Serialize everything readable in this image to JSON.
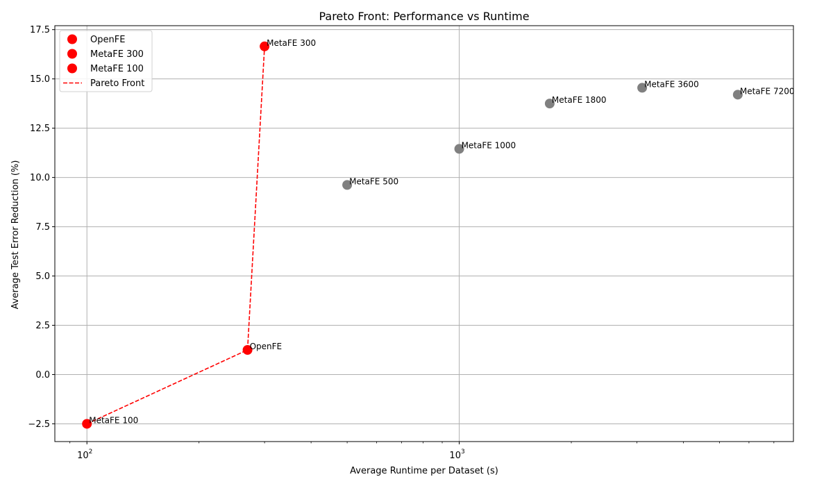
{
  "chart_data": {
    "type": "scatter",
    "title": "Pareto Front: Performance vs Runtime",
    "xlabel": "Average Runtime per Dataset (s)",
    "ylabel": "Average Test Error Reduction (%)",
    "xscale": "log",
    "xlim": [
      82,
      7900
    ],
    "ylim": [
      -3.4,
      17.7
    ],
    "grid": true,
    "legend_position": "top-left",
    "x_ticks": [
      {
        "value": 100,
        "base": "10",
        "exp": "2"
      },
      {
        "value": 1000,
        "base": "10",
        "exp": "3"
      }
    ],
    "y_ticks": [
      {
        "value": -2.5,
        "label": "−2.5"
      },
      {
        "value": 0,
        "label": "0.0"
      },
      {
        "value": 2.5,
        "label": "2.5"
      },
      {
        "value": 5,
        "label": "5.0"
      },
      {
        "value": 7.5,
        "label": "7.5"
      },
      {
        "value": 10,
        "label": "10.0"
      },
      {
        "value": 12.5,
        "label": "12.5"
      },
      {
        "value": 15,
        "label": "15.0"
      },
      {
        "value": 17.5,
        "label": "17.5"
      }
    ],
    "points": [
      {
        "name": "OpenFE",
        "x": 270,
        "y": 1.25,
        "pareto": true
      },
      {
        "name": "MetaFE 300",
        "x": 300,
        "y": 16.65,
        "pareto": true
      },
      {
        "name": "MetaFE 100",
        "x": 100,
        "y": -2.5,
        "pareto": true
      },
      {
        "name": "MetaFE 500",
        "x": 500,
        "y": 9.62,
        "pareto": false
      },
      {
        "name": "MetaFE 1000",
        "x": 1000,
        "y": 11.45,
        "pareto": false
      },
      {
        "name": "MetaFE 1800",
        "x": 1750,
        "y": 13.75,
        "pareto": false
      },
      {
        "name": "MetaFE 3600",
        "x": 3100,
        "y": 14.55,
        "pareto": false
      },
      {
        "name": "MetaFE 7200",
        "x": 5600,
        "y": 14.2,
        "pareto": false
      }
    ],
    "pareto_front": {
      "name": "Pareto Front",
      "x": [
        100,
        270,
        300
      ],
      "y": [
        -2.5,
        1.25,
        16.65
      ]
    },
    "legend": [
      {
        "label": "OpenFE",
        "kind": "marker"
      },
      {
        "label": "MetaFE 300",
        "kind": "marker"
      },
      {
        "label": "MetaFE 100",
        "kind": "marker"
      },
      {
        "label": "Pareto Front",
        "kind": "dashed-line"
      }
    ],
    "colors": {
      "pareto": "#ff0000",
      "other": "#808080",
      "grid": "#b0b0b0",
      "front_line": "#ff0000"
    }
  }
}
